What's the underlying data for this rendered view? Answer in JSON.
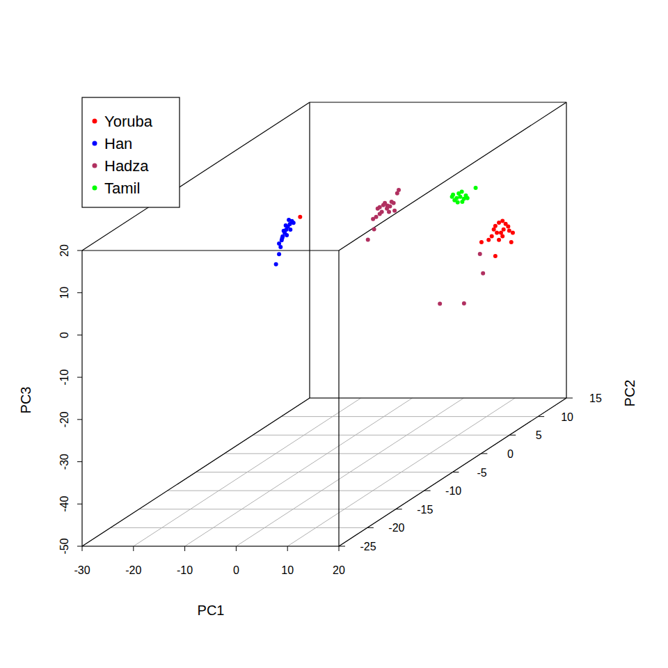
{
  "chart_data": {
    "type": "scatter3d",
    "x_label": "PC1",
    "y_label": "PC2",
    "z_label": "PC3",
    "xlim": [
      -30,
      20
    ],
    "xticks": [
      -30,
      -20,
      -10,
      0,
      10,
      20
    ],
    "ylim": [
      -25,
      15
    ],
    "yticks": [
      -25,
      -20,
      -15,
      -10,
      -5,
      0,
      5,
      10,
      15
    ],
    "zlim": [
      -50,
      20
    ],
    "zticks": [
      -50,
      -40,
      -30,
      -20,
      -10,
      0,
      10,
      20
    ],
    "grid": true,
    "legend": "top-left",
    "series": [
      {
        "name": "Yoruba",
        "color": "#ff0000",
        "values": [
          [
            11.7,
            10,
            -4.9
          ],
          [
            12.4,
            10,
            -4.1
          ],
          [
            13.1,
            10,
            -3.7
          ],
          [
            13.7,
            10,
            -4.4
          ],
          [
            13.3,
            10,
            -5.7
          ],
          [
            12.0,
            10,
            -6.5
          ],
          [
            14.4,
            10,
            -6.0
          ],
          [
            15.1,
            10,
            -6.5
          ],
          [
            11.0,
            10,
            -7.3
          ],
          [
            10.4,
            10,
            -8.2
          ],
          [
            9.0,
            10,
            -8.7
          ],
          [
            12.4,
            10,
            -8.2
          ],
          [
            14.8,
            10,
            -8.7
          ],
          [
            11.7,
            10,
            -12.0
          ],
          [
            13.1,
            10,
            -7.3
          ],
          [
            14.2,
            10,
            -5.0
          ],
          [
            11.4,
            10,
            -5.7
          ],
          [
            12.8,
            10,
            -6.5
          ],
          [
            -24.1,
            8,
            -1.0
          ]
        ]
      },
      {
        "name": "Han",
        "color": "#0000ff",
        "values": [
          [
            -27.5,
            8,
            -5.6
          ],
          [
            -26.8,
            8,
            -4.0
          ],
          [
            -26.1,
            8,
            -2.7
          ],
          [
            -25.7,
            8,
            -2.0
          ],
          [
            -26.5,
            8,
            -3.3
          ],
          [
            -27.1,
            8,
            -4.8
          ],
          [
            -27.7,
            8,
            -6.5
          ],
          [
            -28.2,
            8,
            -7.3
          ],
          [
            -25.4,
            8,
            -2.4
          ],
          [
            -26.0,
            8,
            -4.0
          ],
          [
            -27.3,
            8,
            -4.3
          ],
          [
            -26.7,
            8,
            -5.3
          ],
          [
            -27.9,
            8,
            -8.1
          ],
          [
            -28.2,
            8,
            -9.8
          ],
          [
            -28.8,
            8,
            -12.2
          ],
          [
            -26.3,
            8,
            -1.7
          ],
          [
            -26.9,
            8,
            -3.0
          ],
          [
            -27.6,
            8,
            -6.0
          ]
        ]
      },
      {
        "name": "Hadza",
        "color": "#b03060",
        "values": [
          [
            5.8,
            -5,
            12.7
          ],
          [
            6.5,
            -5,
            13.2
          ],
          [
            7.2,
            -5,
            12.4
          ],
          [
            7.8,
            -5,
            12.9
          ],
          [
            8.5,
            -5,
            13.7
          ],
          [
            9.2,
            -5,
            16.0
          ],
          [
            7.6,
            -5,
            11.6
          ],
          [
            6.2,
            -5,
            11.6
          ],
          [
            5.1,
            -5,
            10.4
          ],
          [
            4.5,
            -5,
            9.9
          ],
          [
            3.5,
            -5,
            5.0
          ],
          [
            4.7,
            -5,
            7.5
          ],
          [
            8.1,
            -5,
            14.0
          ],
          [
            6.8,
            -5,
            13.7
          ],
          [
            5.8,
            -5,
            11.1
          ],
          [
            7.3,
            -5,
            13.1
          ],
          [
            8.7,
            -5,
            11.9
          ],
          [
            5.4,
            -5,
            12.4
          ],
          [
            9.5,
            -5,
            16.8
          ],
          [
            0.9,
            10,
            -23.3
          ],
          [
            5.6,
            10,
            -23.2
          ],
          [
            9.3,
            10,
            -16.1
          ],
          [
            8.7,
            10,
            -11.5
          ]
        ]
      },
      {
        "name": "Tamil",
        "color": "#00ff00",
        "values": [
          [
            9.0,
            5,
            6.9
          ],
          [
            9.7,
            5,
            6.1
          ],
          [
            10.4,
            5,
            6.4
          ],
          [
            11.1,
            5,
            5.9
          ],
          [
            11.5,
            5,
            6.7
          ],
          [
            9.3,
            5,
            5.6
          ],
          [
            10.1,
            5,
            7.2
          ],
          [
            10.8,
            5,
            5.2
          ],
          [
            8.8,
            5,
            6.4
          ],
          [
            11.8,
            5,
            6.1
          ],
          [
            9.9,
            5,
            5.1
          ],
          [
            10.7,
            5,
            7.6
          ],
          [
            13.4,
            5,
            8.5
          ]
        ]
      }
    ]
  }
}
